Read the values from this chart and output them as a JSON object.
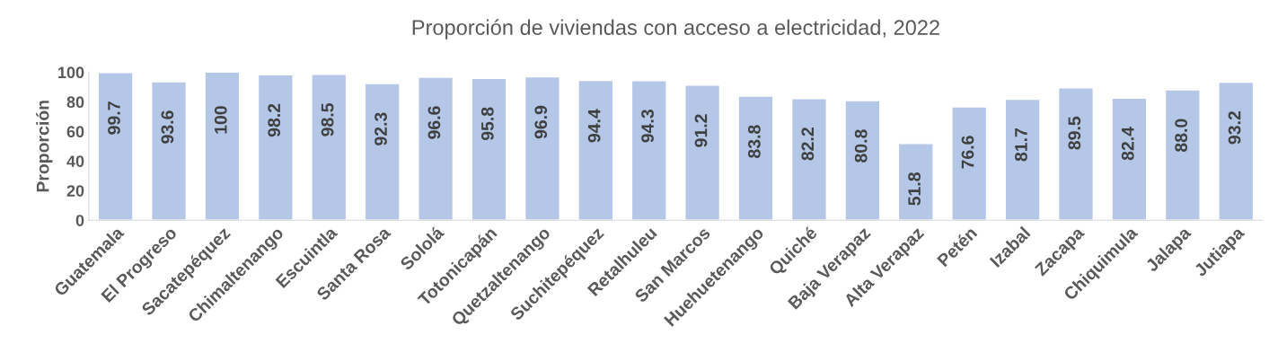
{
  "chart_data": {
    "type": "bar",
    "title": "Proporción de viviendas con acceso a electricidad, 2022",
    "ylabel": "Proporción",
    "categories": [
      "Guatemala",
      "El Progreso",
      "Sacatepéquez",
      "Chimaltenango",
      "Escuintla",
      "Santa Rosa",
      "Sololá",
      "Totonicapán",
      "Quetzaltenango",
      "Suchitepéquez",
      "Retalhuleu",
      "San Marcos",
      "Huehuetenango",
      "Quiché",
      "Baja Verapaz",
      "Alta Verapaz",
      "Petén",
      "Izabal",
      "Zacapa",
      "Chiquimula",
      "Jalapa",
      "Jutiapa"
    ],
    "values": [
      99.7,
      93.6,
      100,
      98.2,
      98.5,
      92.3,
      96.6,
      95.8,
      96.9,
      94.4,
      94.3,
      91.2,
      83.8,
      82.2,
      80.8,
      51.8,
      76.6,
      81.7,
      89.5,
      82.4,
      88.0,
      93.2
    ],
    "value_labels": [
      "99.7",
      "93.6",
      "100",
      "98.2",
      "98.5",
      "92.3",
      "96.6",
      "95.8",
      "96.9",
      "94.4",
      "94.3",
      "91.2",
      "83.8",
      "82.2",
      "80.8",
      "51.8",
      "76.6",
      "81.7",
      "89.5",
      "82.4",
      "88.0",
      "93.2"
    ],
    "color": "#b4c7e7",
    "ylim": [
      0,
      100
    ],
    "yticks": [
      0,
      20,
      40,
      60,
      80,
      100
    ],
    "grid": false,
    "legend": false
  }
}
